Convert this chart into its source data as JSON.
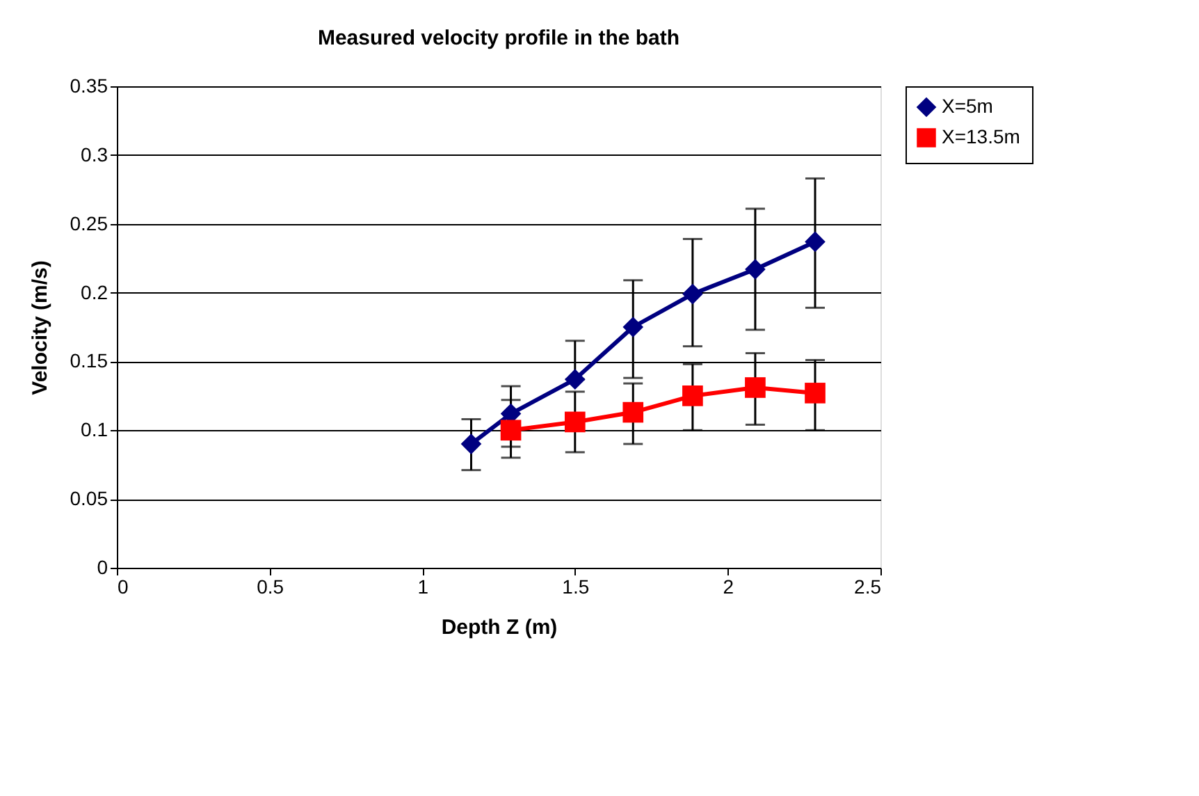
{
  "chart_data": {
    "type": "line",
    "title": "Measured velocity profile in the bath",
    "xlabel": "Depth Z (m)",
    "ylabel": "Velocity (m/s)",
    "xlim": [
      0,
      2.5
    ],
    "xticks": [
      0,
      0.5,
      1,
      1.5,
      2,
      2.5
    ],
    "ylim": [
      0,
      0.35
    ],
    "yticks": [
      0,
      0.05,
      0.1,
      0.15,
      0.2,
      0.25,
      0.3,
      0.35
    ],
    "grid": "y",
    "legend": "right",
    "line_style": "solid",
    "series": [
      {
        "name": "X=5m",
        "color": "#000080",
        "marker": "diamond",
        "x": [
          1.16,
          1.29,
          1.5,
          1.69,
          1.885,
          2.09,
          2.286
        ],
        "values": [
          0.09,
          0.112,
          0.137,
          0.175,
          0.199,
          0.217,
          0.237
        ],
        "errors": [
          [
            0.071,
            0.108
          ],
          [
            0.08,
            0.132
          ],
          [
            0.137,
            0.165
          ],
          [
            0.138,
            0.209
          ],
          [
            0.161,
            0.239
          ],
          [
            0.173,
            0.261
          ],
          [
            0.189,
            0.283
          ]
        ]
      },
      {
        "name": "X=13.5m",
        "color": "#ff0000",
        "marker": "square",
        "x": [
          1.29,
          1.5,
          1.69,
          1.885,
          2.09,
          2.286
        ],
        "values": [
          0.1,
          0.106,
          0.113,
          0.125,
          0.131,
          0.127
        ],
        "errors": [
          [
            0.088,
            0.122
          ],
          [
            0.084,
            0.128
          ],
          [
            0.09,
            0.134
          ],
          [
            0.1,
            0.148
          ],
          [
            0.104,
            0.156
          ],
          [
            0.1,
            0.151
          ]
        ]
      }
    ]
  }
}
